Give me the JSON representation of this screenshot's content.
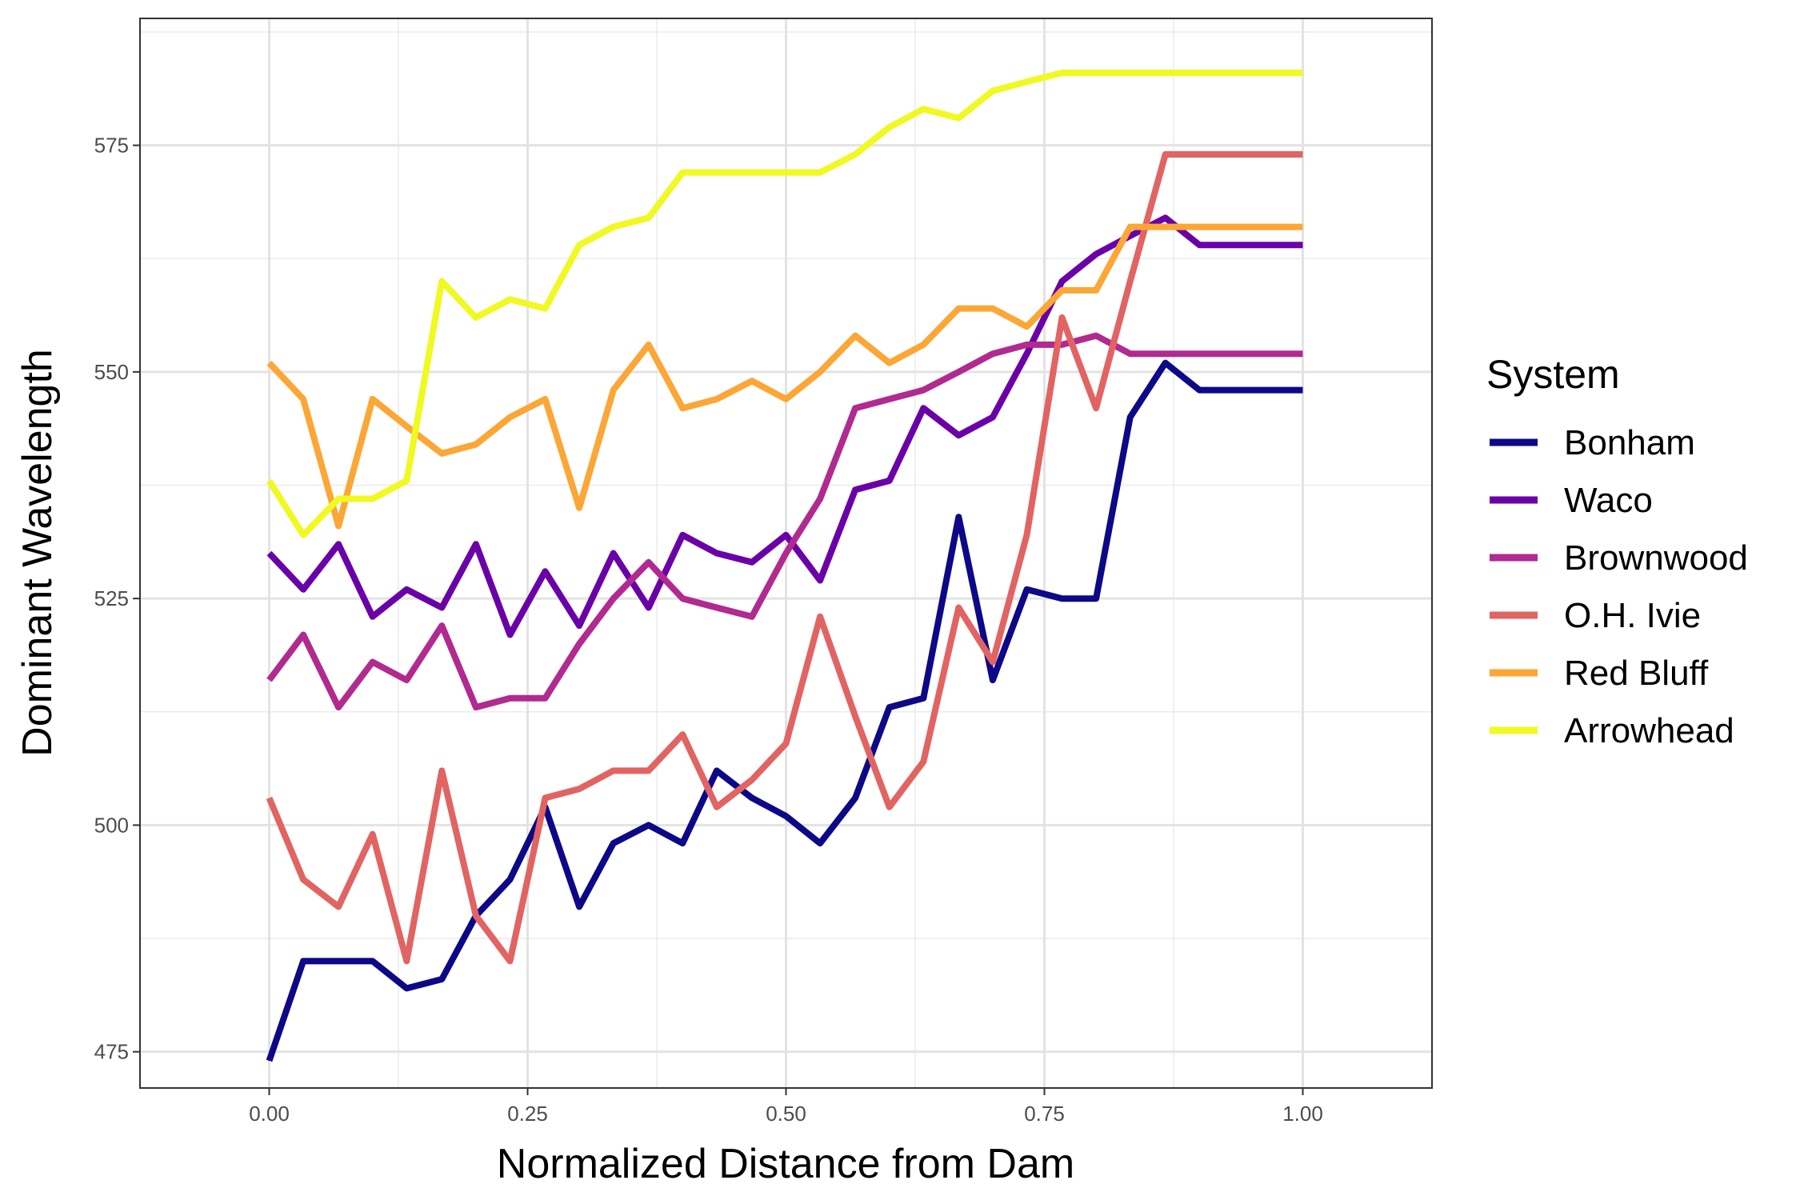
{
  "chart_data": {
    "type": "line",
    "title": "",
    "xlabel": "Normalized Distance from Dam",
    "ylabel": "Dominant Wavelength",
    "xlim": [
      -0.125,
      1.125
    ],
    "ylim": [
      471,
      589
    ],
    "x_ticks": [
      0.0,
      0.25,
      0.5,
      0.75,
      1.0
    ],
    "x_tick_labels": [
      "0.00",
      "0.25",
      "0.50",
      "0.75",
      "1.00"
    ],
    "y_ticks": [
      475,
      500,
      525,
      550,
      575
    ],
    "y_tick_labels": [
      "475",
      "500",
      "525",
      "550",
      "575"
    ],
    "grid": true,
    "legend": {
      "title": "System",
      "position": "right"
    },
    "series": [
      {
        "name": "Bonham",
        "color": "#0d0887",
        "x": [
          0.0,
          0.033,
          0.067,
          0.1,
          0.133,
          0.167,
          0.2,
          0.233,
          0.267,
          0.3,
          0.333,
          0.367,
          0.4,
          0.433,
          0.467,
          0.5,
          0.533,
          0.567,
          0.6,
          0.633,
          0.667,
          0.7,
          0.733,
          0.767,
          0.8,
          0.833,
          0.867,
          0.9,
          0.933,
          0.967,
          1.0
        ],
        "y": [
          474,
          485,
          485,
          485,
          482,
          483,
          490,
          494,
          502,
          491,
          498,
          500,
          498,
          506,
          503,
          501,
          498,
          503,
          513,
          514,
          534,
          516,
          526,
          525,
          525,
          545,
          551,
          548,
          548,
          548,
          548
        ]
      },
      {
        "name": "Waco",
        "color": "#6a00a8",
        "x": [
          0.0,
          0.033,
          0.067,
          0.1,
          0.133,
          0.167,
          0.2,
          0.233,
          0.267,
          0.3,
          0.333,
          0.367,
          0.4,
          0.433,
          0.467,
          0.5,
          0.533,
          0.567,
          0.6,
          0.633,
          0.667,
          0.7,
          0.733,
          0.767,
          0.8,
          0.833,
          0.867,
          0.9,
          0.933,
          0.967,
          1.0
        ],
        "y": [
          530,
          526,
          531,
          523,
          526,
          524,
          531,
          521,
          528,
          522,
          530,
          524,
          532,
          530,
          529,
          532,
          527,
          537,
          538,
          546,
          543,
          545,
          552,
          560,
          563,
          565,
          567,
          564,
          564,
          564,
          564
        ]
      },
      {
        "name": "Brownwood",
        "color": "#b12a90",
        "x": [
          0.0,
          0.033,
          0.067,
          0.1,
          0.133,
          0.167,
          0.2,
          0.233,
          0.267,
          0.3,
          0.333,
          0.367,
          0.4,
          0.433,
          0.467,
          0.5,
          0.533,
          0.567,
          0.6,
          0.633,
          0.667,
          0.7,
          0.733,
          0.767,
          0.8,
          0.833,
          0.867,
          0.9,
          0.933,
          0.967,
          1.0
        ],
        "y": [
          516,
          521,
          513,
          518,
          516,
          522,
          513,
          514,
          514,
          520,
          525,
          529,
          525,
          524,
          523,
          530,
          536,
          546,
          547,
          548,
          550,
          552,
          553,
          553,
          554,
          552,
          552,
          552,
          552,
          552,
          552
        ]
      },
      {
        "name": "O.H. Ivie",
        "color": "#e16462",
        "x": [
          0.0,
          0.033,
          0.067,
          0.1,
          0.133,
          0.167,
          0.2,
          0.233,
          0.267,
          0.3,
          0.333,
          0.367,
          0.4,
          0.433,
          0.467,
          0.5,
          0.533,
          0.567,
          0.6,
          0.633,
          0.667,
          0.7,
          0.733,
          0.767,
          0.8,
          0.833,
          0.867,
          0.9,
          0.933,
          0.967,
          1.0
        ],
        "y": [
          503,
          494,
          491,
          499,
          485,
          506,
          490,
          485,
          503,
          504,
          506,
          506,
          510,
          502,
          505,
          509,
          523,
          512,
          502,
          507,
          524,
          518,
          532,
          556,
          546,
          560,
          574,
          574,
          574,
          574,
          574
        ]
      },
      {
        "name": "Red Bluff",
        "color": "#fca636",
        "x": [
          0.0,
          0.033,
          0.067,
          0.1,
          0.133,
          0.167,
          0.2,
          0.233,
          0.267,
          0.3,
          0.333,
          0.367,
          0.4,
          0.433,
          0.467,
          0.5,
          0.533,
          0.567,
          0.6,
          0.633,
          0.667,
          0.7,
          0.733,
          0.767,
          0.8,
          0.833,
          0.867,
          0.9,
          0.933,
          0.967,
          1.0
        ],
        "y": [
          551,
          547,
          533,
          547,
          544,
          541,
          542,
          545,
          547,
          535,
          548,
          553,
          546,
          547,
          549,
          547,
          550,
          554,
          551,
          553,
          557,
          557,
          555,
          559,
          559,
          566,
          566,
          566,
          566,
          566,
          566
        ]
      },
      {
        "name": "Arrowhead",
        "color": "#f0f921",
        "x": [
          0.0,
          0.033,
          0.067,
          0.1,
          0.133,
          0.167,
          0.2,
          0.233,
          0.267,
          0.3,
          0.333,
          0.367,
          0.4,
          0.433,
          0.467,
          0.5,
          0.533,
          0.567,
          0.6,
          0.633,
          0.667,
          0.7,
          0.733,
          0.767,
          0.8,
          0.833,
          0.867,
          0.9,
          0.933,
          0.967,
          1.0
        ],
        "y": [
          538,
          532,
          536,
          536,
          538,
          560,
          556,
          558,
          557,
          564,
          566,
          567,
          572,
          572,
          572,
          572,
          572,
          574,
          577,
          579,
          578,
          581,
          582,
          583,
          583,
          583,
          583,
          583,
          583,
          583,
          583
        ]
      }
    ]
  }
}
